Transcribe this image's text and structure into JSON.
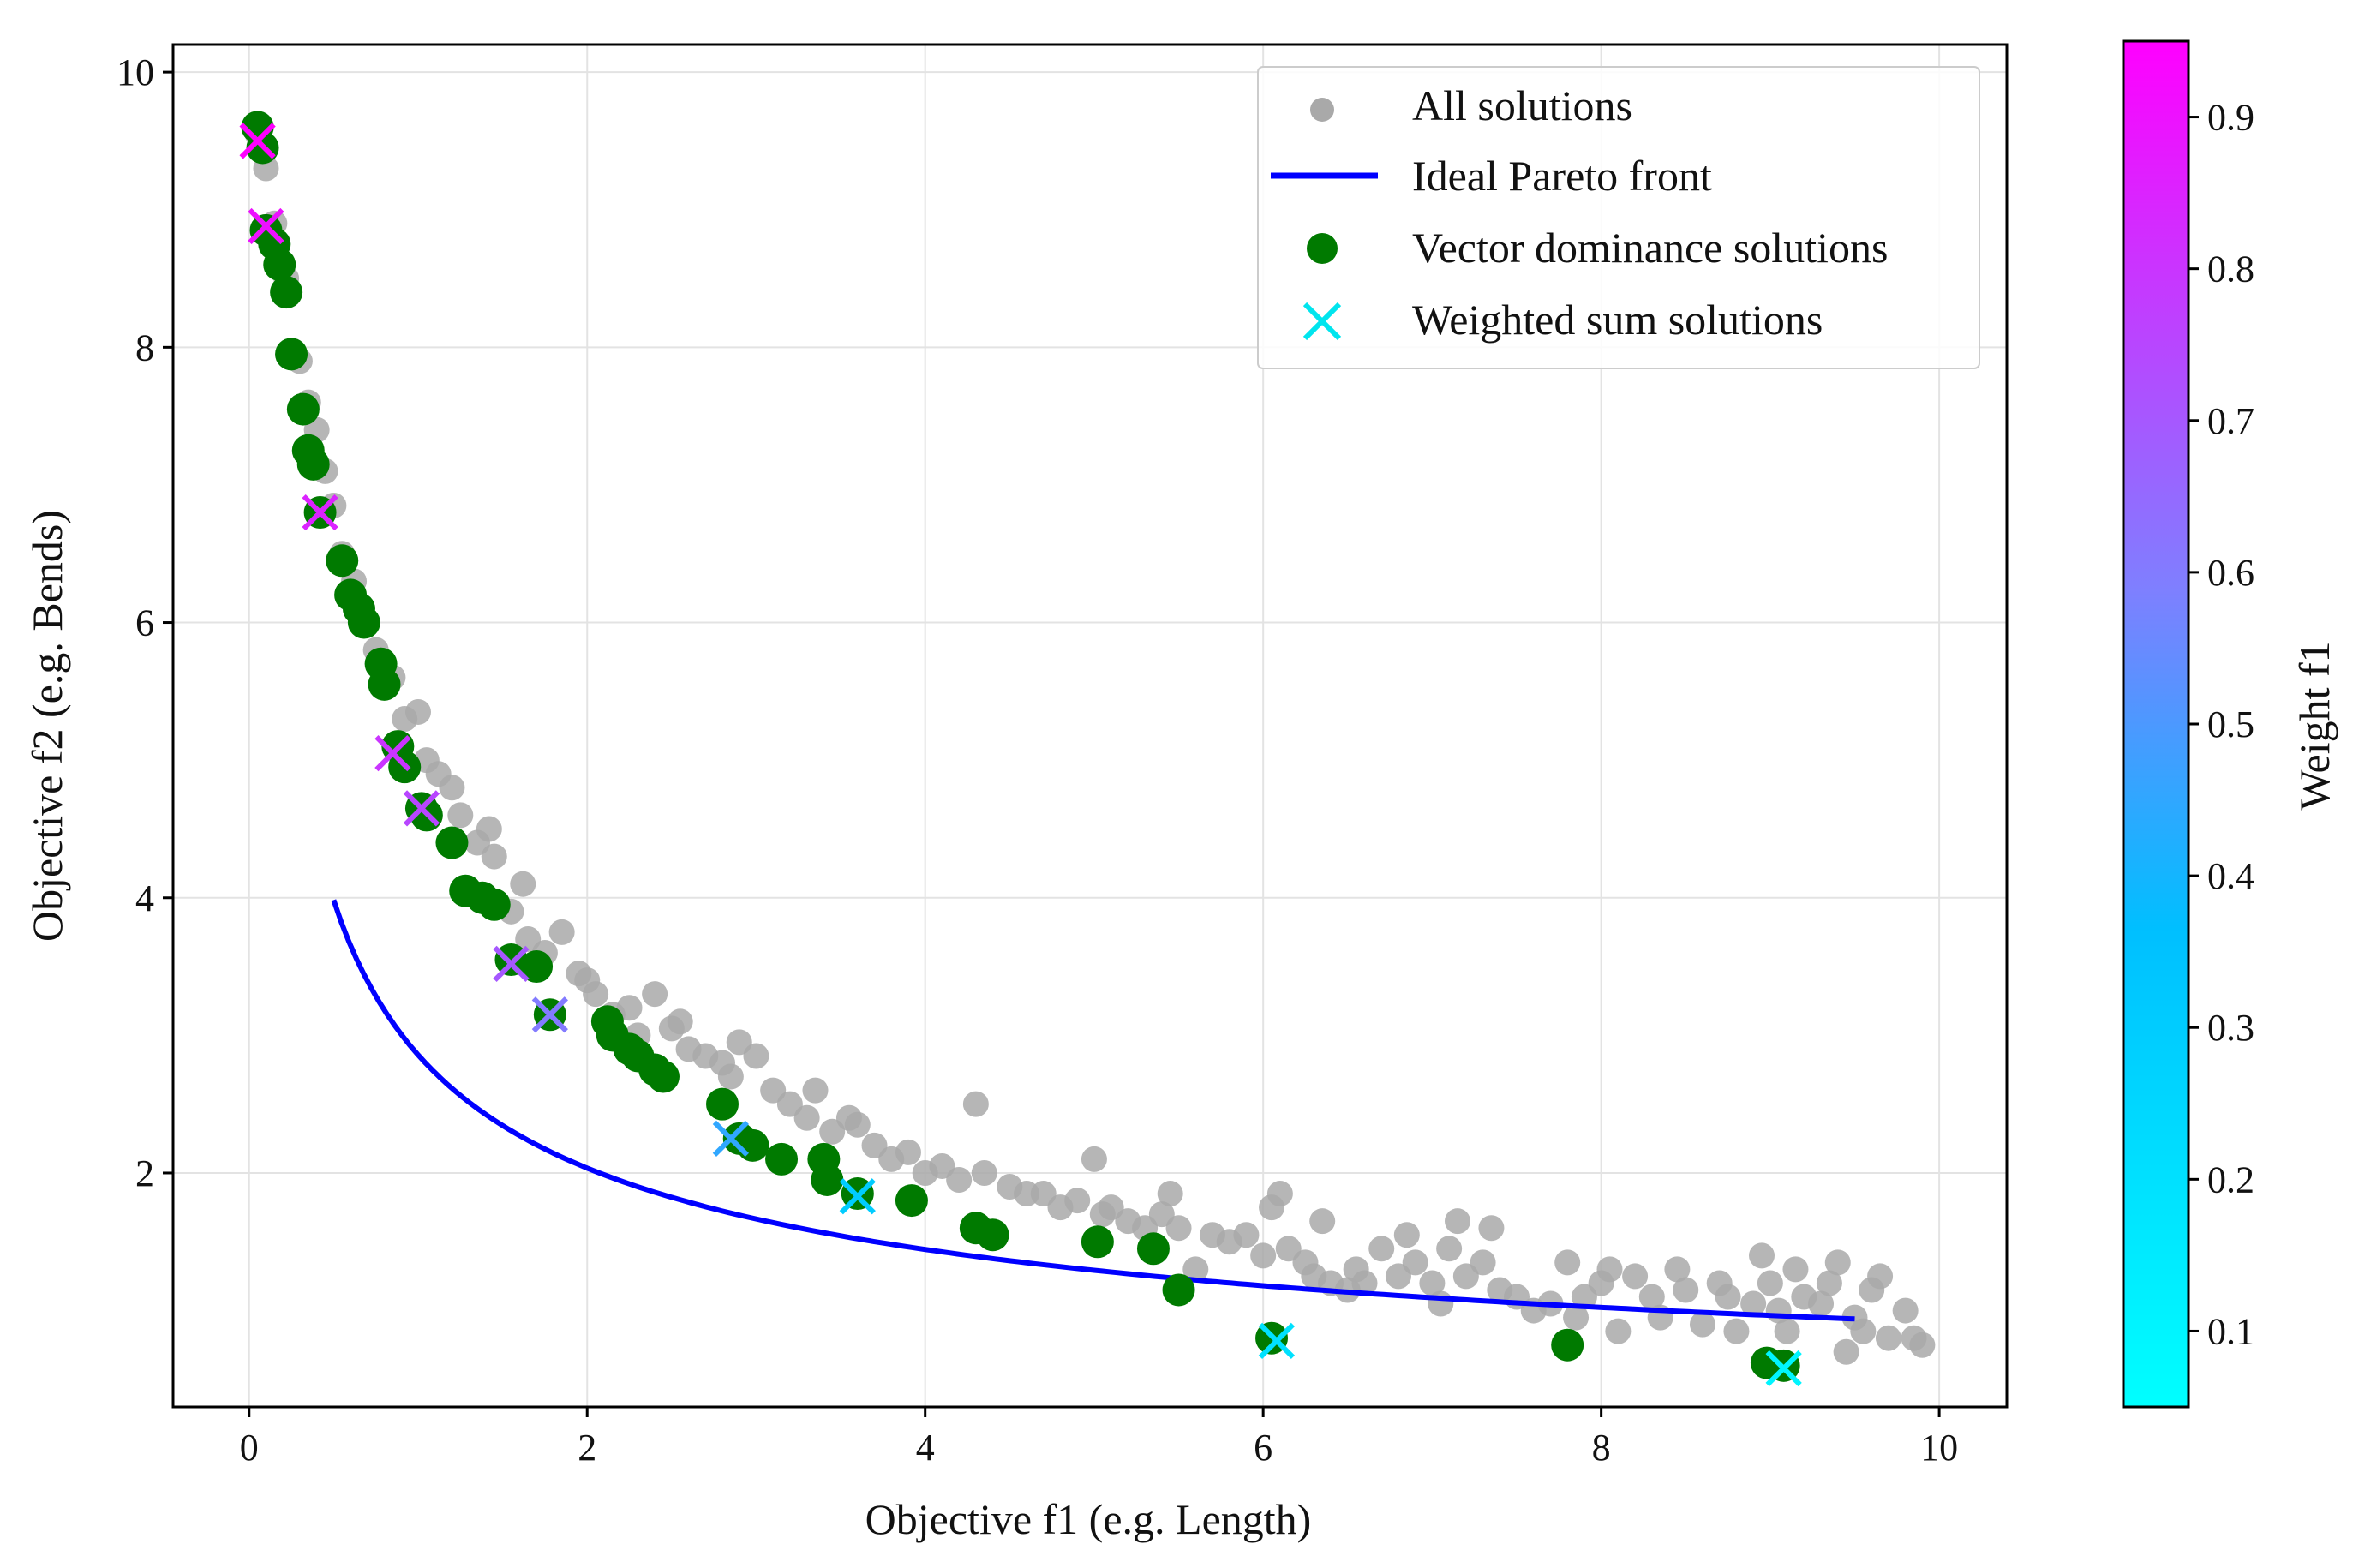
{
  "chart_data": {
    "type": "scatter",
    "title": "",
    "xlabel": "Objective f1  (e.g. Length)",
    "ylabel": "Objective f2  (e.g. Bends)",
    "xlim": [
      -0.45,
      10.4
    ],
    "ylim": [
      0.3,
      10.2
    ],
    "xticks": [
      "0",
      "2",
      "4",
      "6",
      "8",
      "10"
    ],
    "yticks": [
      "2",
      "4",
      "6",
      "8",
      "10"
    ],
    "grid": true,
    "legend_position": "top-right",
    "colorbar": {
      "label": "Weight f1",
      "range": [
        0.05,
        0.95
      ],
      "ticks": [
        "0.1",
        "0.2",
        "0.3",
        "0.4",
        "0.5",
        "0.6",
        "0.7",
        "0.8",
        "0.9"
      ],
      "colors": [
        "#00ffff",
        "#00bfff",
        "#7f7fff",
        "#bf3fff",
        "#ff00ff"
      ]
    },
    "legend": [
      {
        "label": "All solutions",
        "marker": "circle",
        "color": "#a9a9a9"
      },
      {
        "label": "Ideal Pareto front",
        "marker": "line",
        "color": "#0000ff"
      },
      {
        "label": "Vector dominance solutions",
        "marker": "circle",
        "color": "#007a00"
      },
      {
        "label": "Weighted sum solutions",
        "marker": "x",
        "color": "#00e5ee"
      }
    ],
    "series": [
      {
        "name": "All solutions",
        "color": "#a9a9a9",
        "points": [
          [
            0.05,
            9.55
          ],
          [
            0.1,
            9.3
          ],
          [
            0.15,
            8.9
          ],
          [
            0.22,
            8.5
          ],
          [
            0.3,
            7.9
          ],
          [
            0.35,
            7.6
          ],
          [
            0.4,
            7.4
          ],
          [
            0.45,
            7.1
          ],
          [
            0.5,
            6.85
          ],
          [
            0.55,
            6.5
          ],
          [
            0.62,
            6.3
          ],
          [
            0.7,
            6.0
          ],
          [
            0.75,
            5.8
          ],
          [
            0.85,
            5.6
          ],
          [
            0.92,
            5.3
          ],
          [
            1.0,
            5.35
          ],
          [
            1.05,
            5.0
          ],
          [
            1.12,
            4.9
          ],
          [
            1.2,
            4.8
          ],
          [
            1.25,
            4.6
          ],
          [
            1.35,
            4.4
          ],
          [
            1.42,
            4.5
          ],
          [
            1.45,
            4.3
          ],
          [
            1.55,
            3.9
          ],
          [
            1.62,
            4.1
          ],
          [
            1.65,
            3.7
          ],
          [
            1.75,
            3.6
          ],
          [
            1.85,
            3.75
          ],
          [
            1.95,
            3.45
          ],
          [
            2.0,
            3.4
          ],
          [
            2.05,
            3.3
          ],
          [
            2.15,
            3.15
          ],
          [
            2.25,
            3.2
          ],
          [
            2.3,
            3.0
          ],
          [
            2.4,
            3.3
          ],
          [
            2.5,
            3.05
          ],
          [
            2.55,
            3.1
          ],
          [
            2.6,
            2.9
          ],
          [
            2.7,
            2.85
          ],
          [
            2.8,
            2.8
          ],
          [
            2.85,
            2.7
          ],
          [
            2.9,
            2.95
          ],
          [
            3.0,
            2.85
          ],
          [
            3.1,
            2.6
          ],
          [
            3.2,
            2.5
          ],
          [
            3.3,
            2.4
          ],
          [
            3.35,
            2.6
          ],
          [
            3.45,
            2.3
          ],
          [
            3.55,
            2.4
          ],
          [
            3.6,
            2.35
          ],
          [
            3.7,
            2.2
          ],
          [
            3.8,
            2.1
          ],
          [
            3.9,
            2.15
          ],
          [
            4.0,
            2.0
          ],
          [
            4.1,
            2.05
          ],
          [
            4.2,
            1.95
          ],
          [
            4.3,
            2.5
          ],
          [
            4.35,
            2.0
          ],
          [
            4.5,
            1.9
          ],
          [
            4.6,
            1.85
          ],
          [
            4.7,
            1.85
          ],
          [
            4.8,
            1.75
          ],
          [
            4.9,
            1.8
          ],
          [
            5.0,
            2.1
          ],
          [
            5.05,
            1.7
          ],
          [
            5.1,
            1.75
          ],
          [
            5.2,
            1.65
          ],
          [
            5.3,
            1.6
          ],
          [
            5.4,
            1.7
          ],
          [
            5.45,
            1.85
          ],
          [
            5.5,
            1.6
          ],
          [
            5.6,
            1.3
          ],
          [
            5.7,
            1.55
          ],
          [
            5.8,
            1.5
          ],
          [
            5.9,
            1.55
          ],
          [
            6.0,
            1.4
          ],
          [
            6.05,
            1.75
          ],
          [
            6.1,
            1.85
          ],
          [
            6.15,
            1.45
          ],
          [
            6.25,
            1.35
          ],
          [
            6.3,
            1.25
          ],
          [
            6.35,
            1.65
          ],
          [
            6.4,
            1.2
          ],
          [
            6.5,
            1.15
          ],
          [
            6.55,
            1.3
          ],
          [
            6.6,
            1.2
          ],
          [
            6.7,
            1.45
          ],
          [
            6.8,
            1.25
          ],
          [
            6.85,
            1.55
          ],
          [
            6.9,
            1.35
          ],
          [
            7.0,
            1.2
          ],
          [
            7.05,
            1.05
          ],
          [
            7.1,
            1.45
          ],
          [
            7.15,
            1.65
          ],
          [
            7.2,
            1.25
          ],
          [
            7.3,
            1.35
          ],
          [
            7.35,
            1.6
          ],
          [
            7.4,
            1.15
          ],
          [
            7.5,
            1.1
          ],
          [
            7.6,
            1.0
          ],
          [
            7.7,
            1.05
          ],
          [
            7.8,
            1.35
          ],
          [
            7.85,
            0.95
          ],
          [
            7.9,
            1.1
          ],
          [
            8.0,
            1.2
          ],
          [
            8.05,
            1.3
          ],
          [
            8.1,
            0.85
          ],
          [
            8.2,
            1.25
          ],
          [
            8.3,
            1.1
          ],
          [
            8.35,
            0.95
          ],
          [
            8.45,
            1.3
          ],
          [
            8.5,
            1.15
          ],
          [
            8.6,
            0.9
          ],
          [
            8.7,
            1.2
          ],
          [
            8.75,
            1.1
          ],
          [
            8.8,
            0.85
          ],
          [
            8.9,
            1.05
          ],
          [
            8.95,
            1.4
          ],
          [
            9.0,
            1.2
          ],
          [
            9.05,
            1.0
          ],
          [
            9.1,
            0.85
          ],
          [
            9.15,
            1.3
          ],
          [
            9.2,
            1.1
          ],
          [
            9.3,
            1.05
          ],
          [
            9.35,
            1.2
          ],
          [
            9.4,
            1.35
          ],
          [
            9.45,
            0.7
          ],
          [
            9.5,
            0.95
          ],
          [
            9.55,
            0.85
          ],
          [
            9.6,
            1.15
          ],
          [
            9.65,
            1.25
          ],
          [
            9.7,
            0.8
          ],
          [
            9.8,
            1.0
          ],
          [
            9.85,
            0.8
          ],
          [
            9.9,
            0.75
          ]
        ]
      },
      {
        "name": "Vector dominance solutions",
        "color": "#007a00",
        "points": [
          [
            0.05,
            9.6
          ],
          [
            0.08,
            9.45
          ],
          [
            0.1,
            8.85
          ],
          [
            0.15,
            8.75
          ],
          [
            0.18,
            8.6
          ],
          [
            0.22,
            8.4
          ],
          [
            0.25,
            7.95
          ],
          [
            0.32,
            7.55
          ],
          [
            0.35,
            7.25
          ],
          [
            0.38,
            7.15
          ],
          [
            0.42,
            6.8
          ],
          [
            0.55,
            6.45
          ],
          [
            0.6,
            6.2
          ],
          [
            0.65,
            6.1
          ],
          [
            0.68,
            6.0
          ],
          [
            0.78,
            5.7
          ],
          [
            0.8,
            5.55
          ],
          [
            0.88,
            5.1
          ],
          [
            0.92,
            4.95
          ],
          [
            1.02,
            4.65
          ],
          [
            1.05,
            4.6
          ],
          [
            1.2,
            4.4
          ],
          [
            1.28,
            4.05
          ],
          [
            1.38,
            4.0
          ],
          [
            1.45,
            3.95
          ],
          [
            1.55,
            3.55
          ],
          [
            1.7,
            3.5
          ],
          [
            1.78,
            3.15
          ],
          [
            2.12,
            3.1
          ],
          [
            2.15,
            3.0
          ],
          [
            2.25,
            2.9
          ],
          [
            2.3,
            2.85
          ],
          [
            2.4,
            2.75
          ],
          [
            2.45,
            2.7
          ],
          [
            2.8,
            2.5
          ],
          [
            2.9,
            2.25
          ],
          [
            2.98,
            2.2
          ],
          [
            3.15,
            2.1
          ],
          [
            3.4,
            2.1
          ],
          [
            3.42,
            1.95
          ],
          [
            3.6,
            1.85
          ],
          [
            3.92,
            1.8
          ],
          [
            4.3,
            1.6
          ],
          [
            4.4,
            1.55
          ],
          [
            5.02,
            1.5
          ],
          [
            5.35,
            1.45
          ],
          [
            5.5,
            1.15
          ],
          [
            6.05,
            0.8
          ],
          [
            7.8,
            0.75
          ],
          [
            8.98,
            0.62
          ],
          [
            9.08,
            0.6
          ]
        ]
      },
      {
        "name": "Weighted sum solutions",
        "points": [
          [
            0.05,
            9.5,
            0.95
          ],
          [
            0.1,
            8.88,
            0.9
          ],
          [
            0.42,
            6.8,
            0.85
          ],
          [
            0.85,
            5.05,
            0.8
          ],
          [
            1.02,
            4.65,
            0.75
          ],
          [
            1.55,
            3.52,
            0.7
          ],
          [
            1.78,
            3.15,
            0.6
          ],
          [
            2.85,
            2.25,
            0.45
          ],
          [
            3.6,
            1.83,
            0.3
          ],
          [
            6.08,
            0.78,
            0.2
          ],
          [
            9.08,
            0.58,
            0.1
          ]
        ]
      }
    ],
    "pareto_front": {
      "name": "Ideal Pareto front",
      "color": "#0000ff",
      "formula": "f2 = 2.9 / sqrt(f1 + 0.03)",
      "x_range": [
        0.5,
        9.5
      ]
    }
  }
}
